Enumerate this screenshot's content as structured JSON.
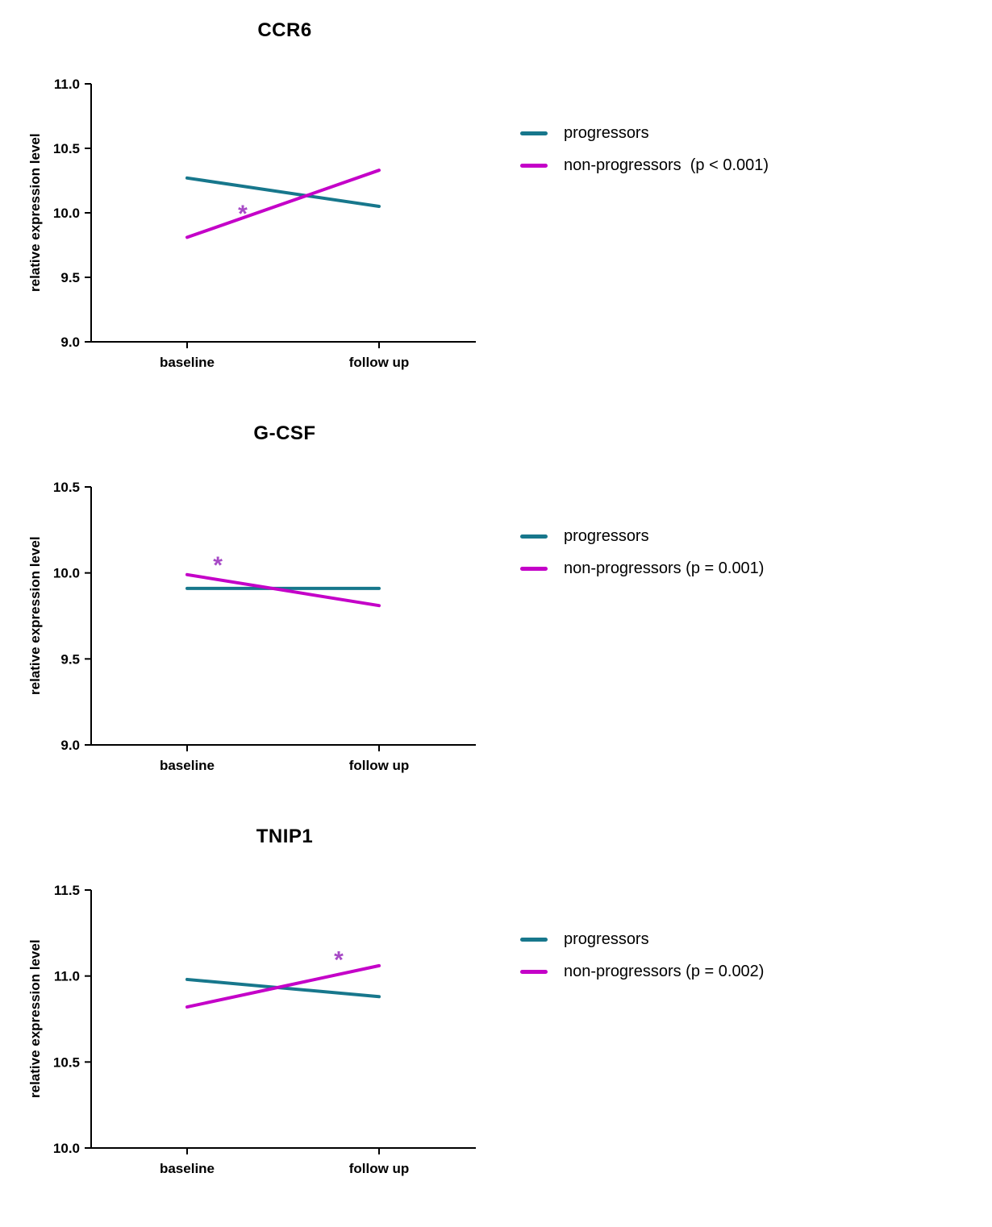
{
  "page": {
    "background": "#ffffff"
  },
  "chart_data": [
    {
      "type": "line",
      "title": "CCR6",
      "xlabel": "",
      "ylabel": "relative expression level",
      "categories": [
        "baseline",
        "follow up"
      ],
      "ylim": [
        9.0,
        11.0
      ],
      "yticks": [
        9.0,
        9.5,
        10.0,
        10.5,
        11.0
      ],
      "grid": false,
      "legend_position": "right",
      "series": [
        {
          "name": "progressors",
          "color": "#17778c",
          "values": [
            10.27,
            10.05
          ]
        },
        {
          "name": "non-progressors",
          "color": "#c400c8",
          "values": [
            9.81,
            10.33
          ]
        }
      ],
      "legend": [
        {
          "label": "progressors",
          "color": "#17778c"
        },
        {
          "label": "non-progressors  (p < 0.001)",
          "color": "#c400c8"
        }
      ],
      "significance_marker": {
        "symbol": "*",
        "x_frac": 0.29,
        "value": 10.0,
        "color": "#a74ac6"
      }
    },
    {
      "type": "line",
      "title": "G-CSF",
      "xlabel": "",
      "ylabel": "relative expression level",
      "categories": [
        "baseline",
        "follow up"
      ],
      "ylim": [
        9.0,
        10.5
      ],
      "yticks": [
        9.0,
        9.5,
        10.0,
        10.5
      ],
      "grid": false,
      "legend_position": "right",
      "series": [
        {
          "name": "progressors",
          "color": "#17778c",
          "values": [
            9.91,
            9.91
          ]
        },
        {
          "name": "non-progressors",
          "color": "#c400c8",
          "values": [
            9.99,
            9.81
          ]
        }
      ],
      "legend": [
        {
          "label": "progressors",
          "color": "#17778c"
        },
        {
          "label": "non-progressors (p = 0.001)",
          "color": "#c400c8"
        }
      ],
      "significance_marker": {
        "symbol": "*",
        "x_frac": 0.16,
        "value": 10.05,
        "color": "#a74ac6"
      }
    },
    {
      "type": "line",
      "title": "TNIP1",
      "xlabel": "",
      "ylabel": "relative expression level",
      "categories": [
        "baseline",
        "follow up"
      ],
      "ylim": [
        10.0,
        11.5
      ],
      "yticks": [
        10.0,
        10.5,
        11.0,
        11.5
      ],
      "grid": false,
      "legend_position": "right",
      "series": [
        {
          "name": "progressors",
          "color": "#17778c",
          "values": [
            10.98,
            10.88
          ]
        },
        {
          "name": "non-progressors",
          "color": "#c400c8",
          "values": [
            10.82,
            11.06
          ]
        }
      ],
      "legend": [
        {
          "label": "progressors",
          "color": "#17778c"
        },
        {
          "label": "non-progressors (p = 0.002)",
          "color": "#c400c8"
        }
      ],
      "significance_marker": {
        "symbol": "*",
        "x_frac": 0.79,
        "value": 11.1,
        "color": "#a74ac6"
      }
    }
  ]
}
